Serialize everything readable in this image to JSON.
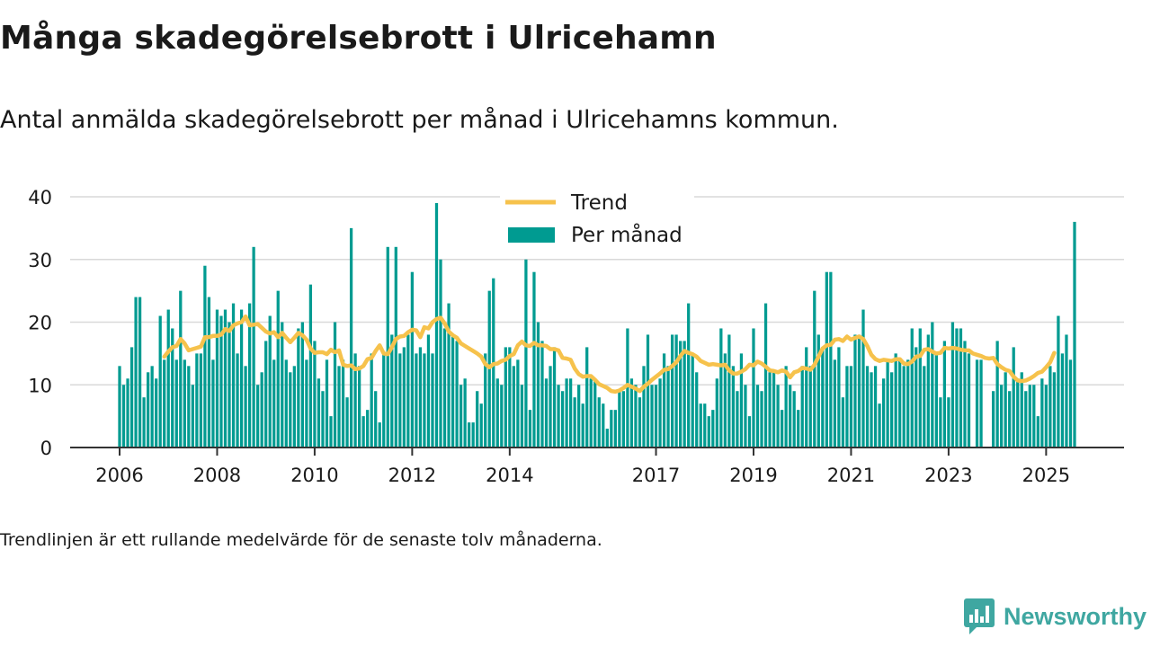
{
  "header": {
    "title": "Många skadegörelsebrott i Ulricehamn",
    "subtitle": "Antal anmälda skadegörelsebrott per månad i Ulricehamns kommun."
  },
  "footnote": "Trendlinjen är ett rullande medelvärde för de senaste tolv månaderna.",
  "brand": {
    "name": "Newsworthy",
    "color": "#3fa7a1",
    "icon": "newsworthy-logo-icon"
  },
  "colors": {
    "bars": "#009b91",
    "trend": "#f6c24c",
    "grid": "#d9d9d9",
    "axis": "#333333"
  },
  "chart_data": {
    "type": "bar",
    "start_month": "2006-01",
    "grid": true,
    "legend_position": "top-center",
    "ylim": [
      0,
      40
    ],
    "yticks": [
      0,
      10,
      20,
      30,
      40
    ],
    "xticks": [
      "2006",
      "2008",
      "2010",
      "2012",
      "2014",
      "2017",
      "2019",
      "2021",
      "2023",
      "2025"
    ],
    "series": [
      {
        "name": "Per månad",
        "type": "bar",
        "values": [
          13,
          10,
          11,
          16,
          24,
          24,
          8,
          12,
          13,
          11,
          21,
          14,
          22,
          19,
          14,
          25,
          14,
          13,
          10,
          15,
          15,
          29,
          24,
          14,
          22,
          21,
          22,
          20,
          23,
          15,
          22,
          13,
          23,
          32,
          10,
          12,
          17,
          21,
          14,
          25,
          20,
          14,
          12,
          13,
          19,
          20,
          14,
          26,
          17,
          11,
          9,
          14,
          5,
          20,
          13,
          14,
          8,
          35,
          15,
          13,
          5,
          6,
          15,
          9,
          4,
          15,
          32,
          18,
          32,
          15,
          16,
          18,
          28,
          15,
          16,
          15,
          18,
          15,
          39,
          30,
          19,
          23,
          18,
          17,
          10,
          11,
          4,
          4,
          9,
          7,
          15,
          25,
          27,
          11,
          10,
          16,
          16,
          13,
          14,
          10,
          30,
          6,
          28,
          20,
          17,
          11,
          13,
          16,
          10,
          9,
          11,
          11,
          8,
          10,
          7,
          16,
          11,
          11,
          8,
          7,
          3,
          6,
          6,
          9,
          9,
          19,
          11,
          10,
          8,
          13,
          18,
          10,
          10,
          11,
          15,
          13,
          18,
          18,
          17,
          17,
          23,
          15,
          12,
          7,
          7,
          5,
          6,
          11,
          19,
          15,
          18,
          13,
          9,
          15,
          10,
          5,
          19,
          10,
          9,
          23,
          12,
          12,
          10,
          6,
          13,
          10,
          9,
          6,
          13,
          16,
          13,
          25,
          18,
          16,
          28,
          28,
          14,
          16,
          8,
          13,
          13,
          18,
          18,
          22,
          13,
          12,
          13,
          7,
          11,
          14,
          12,
          15,
          14,
          13,
          14,
          19,
          16,
          19,
          13,
          18,
          20,
          15,
          8,
          17,
          8,
          20,
          19,
          19,
          17,
          15,
          0,
          14,
          14,
          0,
          0,
          9,
          17,
          10,
          12,
          9,
          16,
          11,
          12,
          9,
          10,
          10,
          5,
          11,
          10,
          13,
          12,
          21,
          15,
          18,
          14,
          36
        ]
      },
      {
        "name": "Trend",
        "type": "line",
        "values": [
          null,
          null,
          null,
          null,
          null,
          null,
          null,
          null,
          null,
          null,
          null,
          14.5,
          15.3,
          16.0,
          16.2,
          17.3,
          16.6,
          15.5,
          15.7,
          15.9,
          16.1,
          17.6,
          17.6,
          17.8,
          17.8,
          18.0,
          18.9,
          18.6,
          19.5,
          19.8,
          20.0,
          20.9,
          19.5,
          19.6,
          19.7,
          19.1,
          18.5,
          18.2,
          18.4,
          17.6,
          18.3,
          17.5,
          16.8,
          17.5,
          18.3,
          17.9,
          17.2,
          15.8,
          15.1,
          15.2,
          15.2,
          14.9,
          15.6,
          15.2,
          15.5,
          13.2,
          13.0,
          13.1,
          12.5,
          12.6,
          13.0,
          14.1,
          14.3,
          15.4,
          16.3,
          15.0,
          14.9,
          16.0,
          17.3,
          17.7,
          17.8,
          18.4,
          18.8,
          18.7,
          17.6,
          19.2,
          19.0,
          20.0,
          20.5,
          20.7,
          19.8,
          18.5,
          17.9,
          17.5,
          16.6,
          16.2,
          15.8,
          15.4,
          15.0,
          14.5,
          13.3,
          12.8,
          13.3,
          13.4,
          13.8,
          14.0,
          14.6,
          14.9,
          16.3,
          16.9,
          16.3,
          16.2,
          16.7,
          16.3,
          16.3,
          16.2,
          15.7,
          15.7,
          15.5,
          14.3,
          14.2,
          14.0,
          12.6,
          11.7,
          11.3,
          11.4,
          11.4,
          10.8,
          10.1,
          9.8,
          9.5,
          9.0,
          8.9,
          9.1,
          9.5,
          10.0,
          9.7,
          9.4,
          9.0,
          9.7,
          10.2,
          10.8,
          11.3,
          11.8,
          12.4,
          12.5,
          13.0,
          13.6,
          14.6,
          15.4,
          15.1,
          14.9,
          14.5,
          13.8,
          13.5,
          13.2,
          13.3,
          13.2,
          13.1,
          13.2,
          12.3,
          11.8,
          11.8,
          12.1,
          12.5,
          13.2,
          13.1,
          13.7,
          13.4,
          12.9,
          12.3,
          12.2,
          12.0,
          12.3,
          12.1,
          11.2,
          12.0,
          12.2,
          12.7,
          12.6,
          12.4,
          13.2,
          14.5,
          15.8,
          16.3,
          16.4,
          17.2,
          17.3,
          17.0,
          17.7,
          17.2,
          17.5,
          17.7,
          17.3,
          16.2,
          14.8,
          14.1,
          13.8,
          14.0,
          13.9,
          13.8,
          14.1,
          14.1,
          13.4,
          13.3,
          13.7,
          14.5,
          14.6,
          15.6,
          15.7,
          15.3,
          15.0,
          15.1,
          15.9,
          15.8,
          15.9,
          15.8,
          15.6,
          15.5,
          15.5,
          15.0,
          14.8,
          14.6,
          14.3,
          14.2,
          14.3,
          13.3,
          12.8,
          12.4,
          12.2,
          11.3,
          10.7,
          10.6,
          10.7,
          11.0,
          11.4,
          11.9,
          12.1,
          12.8,
          13.6,
          15.1
        ]
      }
    ]
  }
}
